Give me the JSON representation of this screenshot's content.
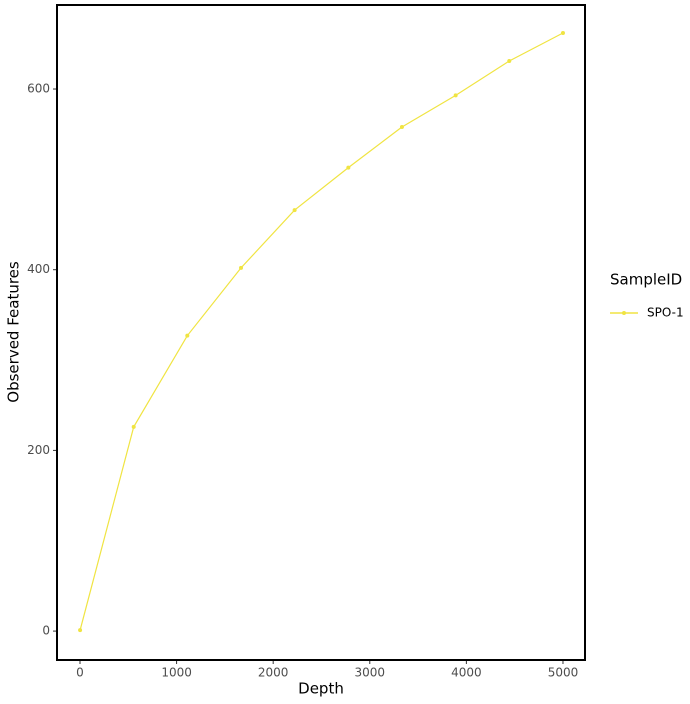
{
  "chart_data": {
    "type": "line",
    "x_label": "Depth",
    "y_label": "Observed Features",
    "x": [
      1,
      556,
      1111,
      1667,
      2222,
      2778,
      3333,
      3889,
      4444,
      5000
    ],
    "series": [
      {
        "name": "SPO-1",
        "color": "#f0e442",
        "values": [
          1,
          226,
          327,
          402,
          466,
          513,
          558,
          593,
          631,
          662
        ]
      }
    ],
    "xlim": [
      -238,
      5228
    ],
    "ylim": [
      -32,
      693
    ],
    "xticks": [
      0,
      1000,
      2000,
      3000,
      4000,
      5000
    ],
    "yticks": [
      0,
      200,
      400,
      600
    ],
    "legend_title": "SampleID",
    "legend": "right",
    "grid": false
  }
}
